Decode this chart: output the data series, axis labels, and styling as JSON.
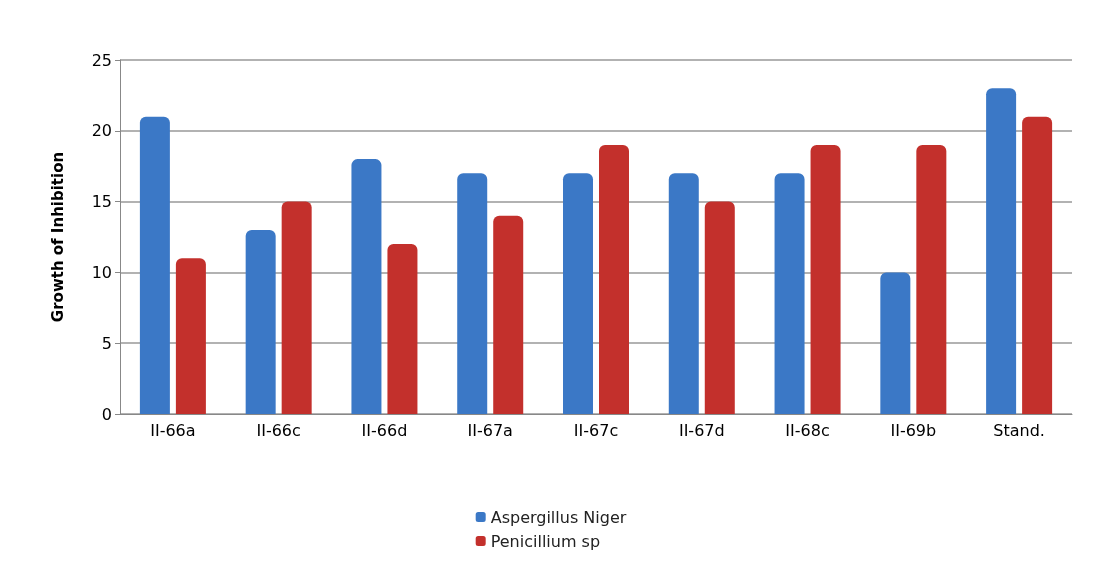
{
  "chart_data": {
    "type": "bar",
    "ylabel": "Growth of Inhibition",
    "categories": [
      "II-66a",
      "II-66c",
      "II-66d",
      "II-67a",
      "II-67c",
      "II-67d",
      "II-68c",
      "II-69b",
      "Stand."
    ],
    "series": [
      {
        "name": "Aspergillus Niger",
        "color": "#3b78c6",
        "values": [
          21,
          13,
          18,
          17,
          17,
          17,
          17,
          10,
          23
        ]
      },
      {
        "name": "Penicillium sp",
        "color": "#c3302c",
        "values": [
          11,
          15,
          12,
          14,
          19,
          15,
          19,
          19,
          21
        ]
      }
    ],
    "ylim": [
      0,
      25
    ],
    "yticks": [
      0,
      5,
      10,
      15,
      20,
      25
    ],
    "grid": "y",
    "legend": "bottom"
  }
}
